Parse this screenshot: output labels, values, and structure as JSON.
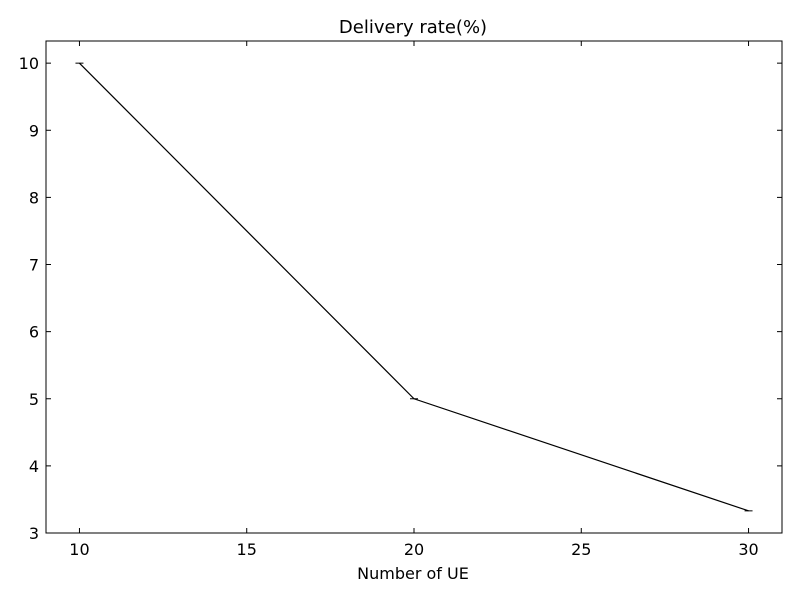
{
  "chart_data": {
    "type": "line",
    "title": "Delivery rate(%)",
    "xlabel": "Number of UE",
    "ylabel": "",
    "xlim": [
      9,
      31
    ],
    "ylim": [
      3,
      10.33
    ],
    "xticks": [
      10,
      15,
      20,
      25,
      30
    ],
    "yticks": [
      3,
      4,
      5,
      6,
      7,
      8,
      9,
      10
    ],
    "grid": false,
    "series": [
      {
        "x": [
          10,
          20,
          30
        ],
        "values": [
          10,
          5,
          3.33
        ],
        "color": "#000000"
      }
    ]
  }
}
